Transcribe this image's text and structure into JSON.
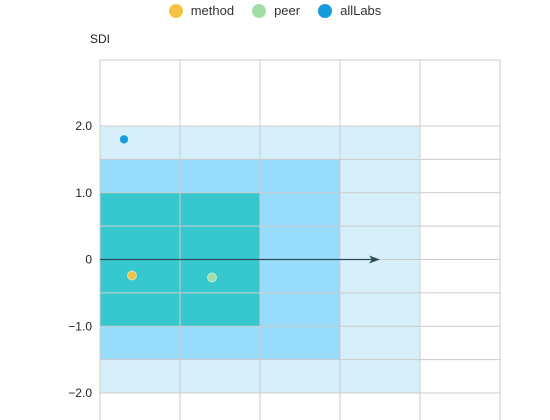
{
  "chart_data": {
    "type": "scatter",
    "ylabel": "SDI",
    "ylim": [
      -2.0,
      2.0
    ],
    "yticks": [
      {
        "value": 2.0,
        "label": "2.0"
      },
      {
        "value": 1.0,
        "label": "1.0"
      },
      {
        "value": 0,
        "label": "0"
      },
      {
        "value": -1.0,
        "label": "−1.0"
      },
      {
        "value": -2.0,
        "label": "−2.0"
      }
    ],
    "xlim": [
      0,
      5
    ],
    "legend_position": "top-center",
    "bands": [
      {
        "x_max": 4,
        "y_min": -2.0,
        "y_max": 2.0,
        "color": "#d6effb"
      },
      {
        "x_max": 3,
        "y_min": -1.5,
        "y_max": 1.5,
        "color": "#97dcfa"
      },
      {
        "x_max": 2,
        "y_min": -1.0,
        "y_max": 1.0,
        "color": "#37c8cf"
      }
    ],
    "arrow": {
      "x_from": 0,
      "x_to": 3.5,
      "y": 0
    },
    "series": [
      {
        "name": "method",
        "color": "#f5c342",
        "points": [
          {
            "x": 0.4,
            "y": -0.24
          }
        ]
      },
      {
        "name": "peer",
        "color": "#a3dfa5",
        "points": [
          {
            "x": 1.4,
            "y": -0.27
          }
        ]
      },
      {
        "name": "allLabs",
        "color": "#169cdc",
        "points": [
          {
            "x": 0.3,
            "y": 1.8
          }
        ]
      }
    ]
  }
}
